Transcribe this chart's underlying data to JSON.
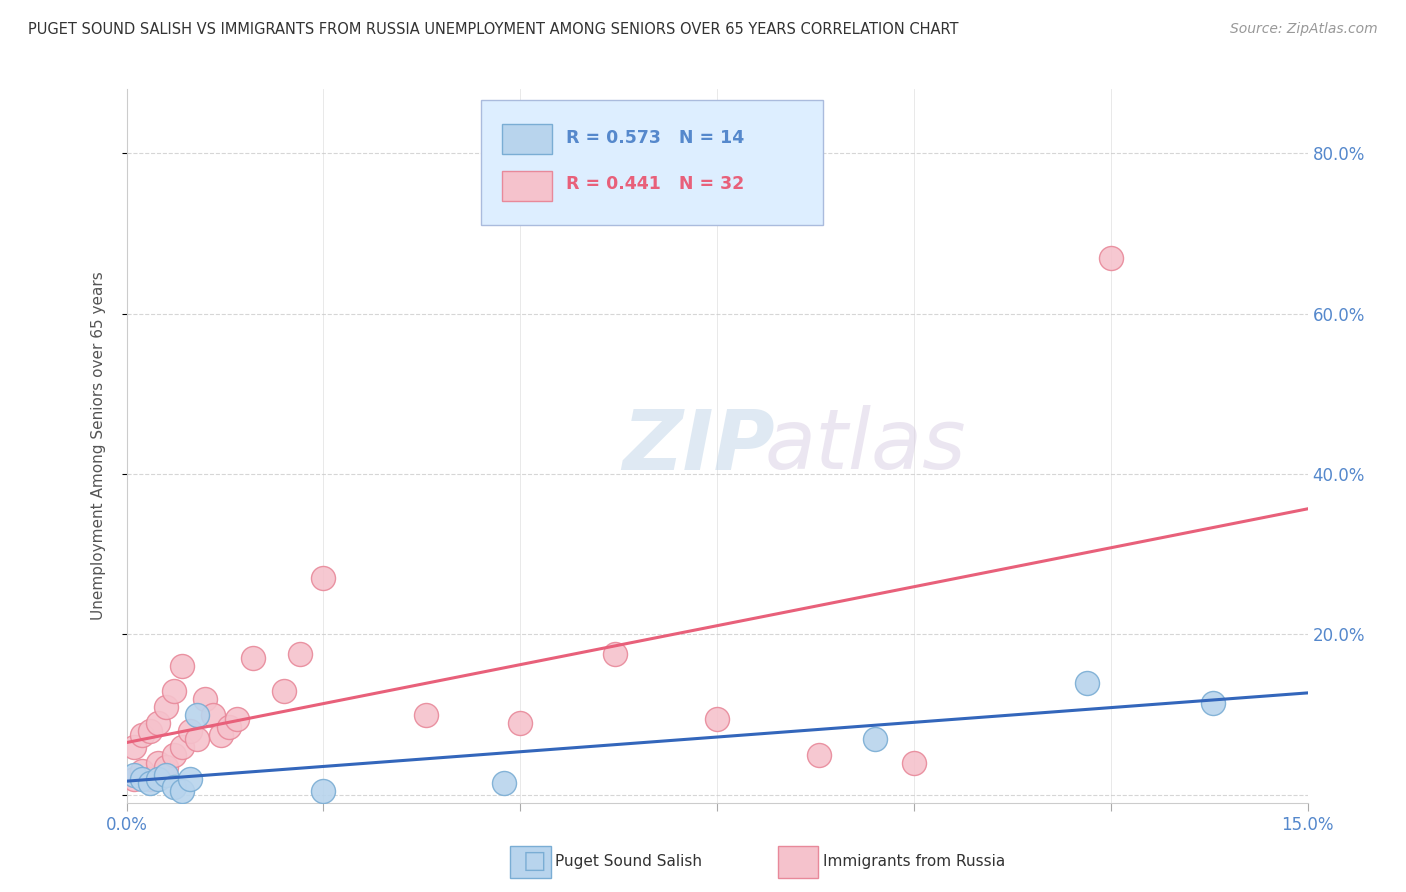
{
  "title": "PUGET SOUND SALISH VS IMMIGRANTS FROM RUSSIA UNEMPLOYMENT AMONG SENIORS OVER 65 YEARS CORRELATION CHART",
  "source": "Source: ZipAtlas.com",
  "ylabel": "Unemployment Among Seniors over 65 years",
  "xlim": [
    0.0,
    0.15
  ],
  "ylim": [
    -0.01,
    0.88
  ],
  "xticks": [
    0.0,
    0.025,
    0.05,
    0.075,
    0.1,
    0.125,
    0.15
  ],
  "yticks": [
    0.0,
    0.2,
    0.4,
    0.6,
    0.8
  ],
  "ytick_labels": [
    "",
    "20.0%",
    "40.0%",
    "60.0%",
    "80.0%"
  ],
  "xtick_labels": [
    "0.0%",
    "",
    "",
    "",
    "",
    "",
    "15.0%"
  ],
  "series1_name": "Puget Sound Salish",
  "series1_R": 0.573,
  "series1_N": 14,
  "series1_color": "#b8d4ed",
  "series1_edge_color": "#7aadd4",
  "series1_trend_color": "#3366bb",
  "series2_name": "Immigrants from Russia",
  "series2_R": 0.441,
  "series2_N": 32,
  "series2_color": "#f5c2cc",
  "series2_edge_color": "#e8899a",
  "series2_trend_color": "#e8607a",
  "series1_x": [
    0.001,
    0.002,
    0.003,
    0.004,
    0.005,
    0.006,
    0.007,
    0.008,
    0.009,
    0.025,
    0.048,
    0.095,
    0.122,
    0.138
  ],
  "series1_y": [
    0.025,
    0.02,
    0.015,
    0.02,
    0.025,
    0.01,
    0.005,
    0.02,
    0.1,
    0.005,
    0.015,
    0.07,
    0.14,
    0.115
  ],
  "series2_x": [
    0.001,
    0.001,
    0.002,
    0.002,
    0.003,
    0.003,
    0.004,
    0.004,
    0.005,
    0.005,
    0.006,
    0.006,
    0.007,
    0.007,
    0.008,
    0.009,
    0.01,
    0.011,
    0.012,
    0.013,
    0.014,
    0.016,
    0.02,
    0.022,
    0.025,
    0.038,
    0.05,
    0.062,
    0.075,
    0.088,
    0.1,
    0.125
  ],
  "series2_y": [
    0.02,
    0.06,
    0.03,
    0.075,
    0.02,
    0.08,
    0.04,
    0.09,
    0.035,
    0.11,
    0.05,
    0.13,
    0.06,
    0.16,
    0.08,
    0.07,
    0.12,
    0.1,
    0.075,
    0.085,
    0.095,
    0.17,
    0.13,
    0.175,
    0.27,
    0.1,
    0.09,
    0.175,
    0.095,
    0.05,
    0.04,
    0.67
  ],
  "watermark_zip": "ZIP",
  "watermark_atlas": "atlas",
  "background_color": "#ffffff",
  "grid_color": "#cccccc",
  "title_color": "#333333",
  "axis_label_color": "#555555",
  "tick_color": "#5588cc",
  "legend_box_color": "#ddeeff",
  "legend_border_color": "#aabbdd"
}
